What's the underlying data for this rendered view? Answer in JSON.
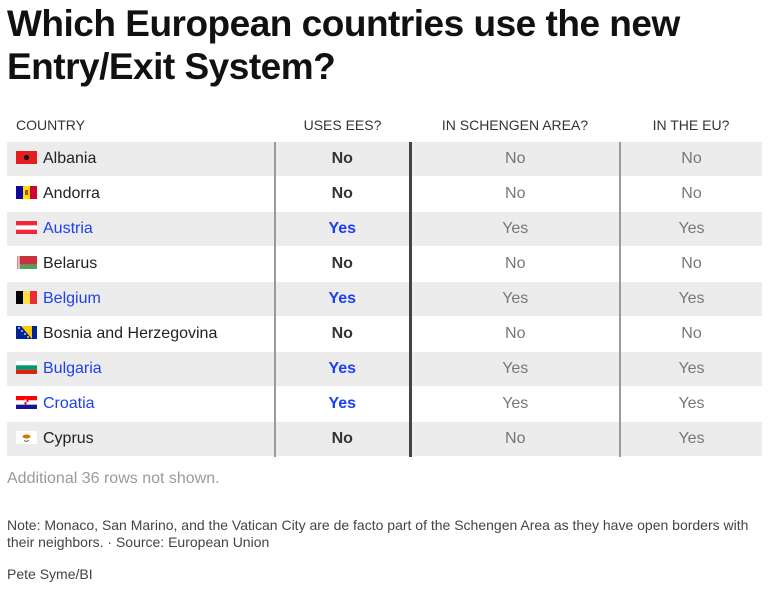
{
  "title": "Which European countries use the new Entry/Exit System?",
  "columns": [
    "COUNTRY",
    "USES EES?",
    "IN SCHENGEN AREA?",
    "IN THE EU?"
  ],
  "rows": [
    {
      "country": "Albania",
      "ees": "No",
      "schengen": "No",
      "eu": "No",
      "flag": "albania-flag"
    },
    {
      "country": "Andorra",
      "ees": "No",
      "schengen": "No",
      "eu": "No",
      "flag": "andorra-flag"
    },
    {
      "country": "Austria",
      "ees": "Yes",
      "schengen": "Yes",
      "eu": "Yes",
      "flag": "austria-flag"
    },
    {
      "country": "Belarus",
      "ees": "No",
      "schengen": "No",
      "eu": "No",
      "flag": "belarus-flag"
    },
    {
      "country": "Belgium",
      "ees": "Yes",
      "schengen": "Yes",
      "eu": "Yes",
      "flag": "belgium-flag"
    },
    {
      "country": "Bosnia and Herzegovina",
      "ees": "No",
      "schengen": "No",
      "eu": "No",
      "flag": "bosnia-flag"
    },
    {
      "country": "Bulgaria",
      "ees": "Yes",
      "schengen": "Yes",
      "eu": "Yes",
      "flag": "bulgaria-flag"
    },
    {
      "country": "Croatia",
      "ees": "Yes",
      "schengen": "Yes",
      "eu": "Yes",
      "flag": "croatia-flag"
    },
    {
      "country": "Cyprus",
      "ees": "No",
      "schengen": "No",
      "eu": "Yes",
      "flag": "cyprus-flag"
    }
  ],
  "more_rows": "Additional 36 rows not shown.",
  "note": "Note: Monaco, San Marino, and the Vatican City are de facto part of the Schengen Area as they have open borders with their neighbors. · Source: European Union",
  "credit": "Pete Syme/BI",
  "colors": {
    "yes": "#1e3ff0",
    "shade": "#ececec"
  }
}
